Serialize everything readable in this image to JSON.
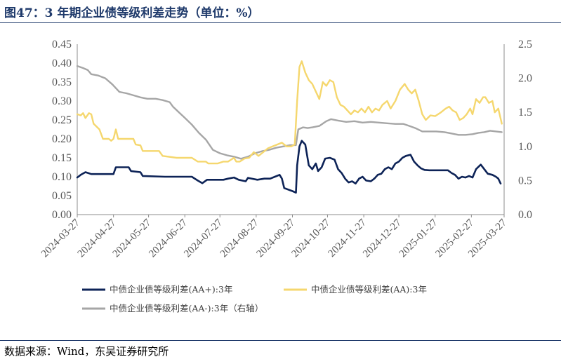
{
  "figure": {
    "title": "图47：3 年期企业债等级利差走势（单位：%）",
    "source": "数据来源：Wind，东吴证券研究所"
  },
  "colors": {
    "title": "#1f3a6b",
    "axis": "#595959",
    "series_aa_plus": "#0d2357",
    "series_aa": "#f5d76e",
    "series_aa_minus": "#a6a6a6"
  },
  "chart_data": {
    "type": "line",
    "title": "",
    "xlabel": "",
    "ylabel": "",
    "x_start": "2024-03-27",
    "x_end": "2025-03-27",
    "x_ticks": [
      "2024-03-27",
      "2024-04-27",
      "2024-05-27",
      "2024-06-27",
      "2024-07-27",
      "2024-08-27",
      "2024-09-27",
      "2024-10-27",
      "2024-11-27",
      "2024-12-27",
      "2025-01-27",
      "2025-02-27",
      "2025-03-27"
    ],
    "ylim": [
      0,
      0.45
    ],
    "y_ticks": [
      "0.00",
      "0.05",
      "0.10",
      "0.15",
      "0.20",
      "0.25",
      "0.30",
      "0.35",
      "0.40",
      "0.45"
    ],
    "y2lim": [
      0,
      2.5
    ],
    "y2_ticks": [
      "0.0",
      "0.5",
      "1.0",
      "1.5",
      "2.0",
      "2.5"
    ],
    "grid": false,
    "legend": "bottom",
    "series": [
      {
        "name": "中债企业债等级利差(AA+):3年",
        "axis": "left",
        "color": "#0d2357",
        "points": [
          [
            "2024-03-27",
            0.098
          ],
          [
            "2024-03-30",
            0.105
          ],
          [
            "2024-04-03",
            0.112
          ],
          [
            "2024-04-08",
            0.107
          ],
          [
            "2024-04-20",
            0.107
          ],
          [
            "2024-04-27",
            0.107
          ],
          [
            "2024-04-29",
            0.125
          ],
          [
            "2024-05-10",
            0.125
          ],
          [
            "2024-05-12",
            0.115
          ],
          [
            "2024-05-20",
            0.112
          ],
          [
            "2024-05-22",
            0.102
          ],
          [
            "2024-06-10",
            0.1
          ],
          [
            "2024-06-27",
            0.1
          ],
          [
            "2024-07-03",
            0.1
          ],
          [
            "2024-07-08",
            0.09
          ],
          [
            "2024-07-12",
            0.083
          ],
          [
            "2024-07-16",
            0.092
          ],
          [
            "2024-07-30",
            0.092
          ],
          [
            "2024-08-03",
            0.095
          ],
          [
            "2024-08-08",
            0.098
          ],
          [
            "2024-08-12",
            0.092
          ],
          [
            "2024-08-18",
            0.088
          ],
          [
            "2024-08-20",
            0.097
          ],
          [
            "2024-08-28",
            0.092
          ],
          [
            "2024-09-03",
            0.095
          ],
          [
            "2024-09-08",
            0.095
          ],
          [
            "2024-09-12",
            0.1
          ],
          [
            "2024-09-16",
            0.105
          ],
          [
            "2024-09-18",
            0.095
          ],
          [
            "2024-09-20",
            0.07
          ],
          [
            "2024-09-27",
            0.062
          ],
          [
            "2024-09-30",
            0.058
          ],
          [
            "2024-10-01",
            0.13
          ],
          [
            "2024-10-03",
            0.18
          ],
          [
            "2024-10-05",
            0.195
          ],
          [
            "2024-10-08",
            0.185
          ],
          [
            "2024-10-11",
            0.13
          ],
          [
            "2024-10-14",
            0.12
          ],
          [
            "2024-10-17",
            0.135
          ],
          [
            "2024-10-19",
            0.115
          ],
          [
            "2024-10-22",
            0.125
          ],
          [
            "2024-10-25",
            0.148
          ],
          [
            "2024-10-29",
            0.15
          ],
          [
            "2024-11-02",
            0.145
          ],
          [
            "2024-11-05",
            0.12
          ],
          [
            "2024-11-08",
            0.11
          ],
          [
            "2024-11-11",
            0.095
          ],
          [
            "2024-11-14",
            0.085
          ],
          [
            "2024-11-17",
            0.088
          ],
          [
            "2024-11-20",
            0.082
          ],
          [
            "2024-11-23",
            0.095
          ],
          [
            "2024-11-26",
            0.1
          ],
          [
            "2024-11-29",
            0.09
          ],
          [
            "2024-12-03",
            0.088
          ],
          [
            "2024-12-06",
            0.095
          ],
          [
            "2024-12-09",
            0.105
          ],
          [
            "2024-12-12",
            0.108
          ],
          [
            "2024-12-15",
            0.12
          ],
          [
            "2024-12-18",
            0.125
          ],
          [
            "2024-12-21",
            0.12
          ],
          [
            "2024-12-24",
            0.135
          ],
          [
            "2024-12-27",
            0.14
          ],
          [
            "2024-12-30",
            0.15
          ],
          [
            "2025-01-02",
            0.155
          ],
          [
            "2025-01-06",
            0.158
          ],
          [
            "2025-01-09",
            0.14
          ],
          [
            "2025-01-12",
            0.13
          ],
          [
            "2025-01-15",
            0.122
          ],
          [
            "2025-01-18",
            0.118
          ],
          [
            "2025-01-22",
            0.117
          ],
          [
            "2025-01-27",
            0.117
          ],
          [
            "2025-02-03",
            0.117
          ],
          [
            "2025-02-07",
            0.117
          ],
          [
            "2025-02-10",
            0.11
          ],
          [
            "2025-02-13",
            0.105
          ],
          [
            "2025-02-16",
            0.095
          ],
          [
            "2025-02-19",
            0.1
          ],
          [
            "2025-02-22",
            0.098
          ],
          [
            "2025-02-25",
            0.102
          ],
          [
            "2025-02-28",
            0.098
          ],
          [
            "2025-03-03",
            0.12
          ],
          [
            "2025-03-07",
            0.132
          ],
          [
            "2025-03-10",
            0.12
          ],
          [
            "2025-03-13",
            0.108
          ],
          [
            "2025-03-17",
            0.105
          ],
          [
            "2025-03-20",
            0.1
          ],
          [
            "2025-03-22",
            0.095
          ],
          [
            "2025-03-24",
            0.082
          ]
        ]
      },
      {
        "name": "中债企业债等级利差(AA):3年",
        "axis": "left",
        "color": "#f5d76e",
        "points": [
          [
            "2024-03-27",
            0.265
          ],
          [
            "2024-03-30",
            0.262
          ],
          [
            "2024-04-01",
            0.268
          ],
          [
            "2024-04-03",
            0.255
          ],
          [
            "2024-04-06",
            0.268
          ],
          [
            "2024-04-08",
            0.265
          ],
          [
            "2024-04-10",
            0.24
          ],
          [
            "2024-04-15",
            0.225
          ],
          [
            "2024-04-18",
            0.2
          ],
          [
            "2024-04-23",
            0.2
          ],
          [
            "2024-04-25",
            0.195
          ],
          [
            "2024-04-27",
            0.2
          ],
          [
            "2024-04-29",
            0.225
          ],
          [
            "2024-05-01",
            0.2
          ],
          [
            "2024-05-05",
            0.2
          ],
          [
            "2024-05-14",
            0.2
          ],
          [
            "2024-05-16",
            0.185
          ],
          [
            "2024-05-20",
            0.183
          ],
          [
            "2024-05-22",
            0.168
          ],
          [
            "2024-06-05",
            0.168
          ],
          [
            "2024-06-08",
            0.155
          ],
          [
            "2024-06-20",
            0.15
          ],
          [
            "2024-06-27",
            0.15
          ],
          [
            "2024-07-03",
            0.15
          ],
          [
            "2024-07-08",
            0.14
          ],
          [
            "2024-07-15",
            0.14
          ],
          [
            "2024-07-17",
            0.135
          ],
          [
            "2024-07-25",
            0.135
          ],
          [
            "2024-07-30",
            0.14
          ],
          [
            "2024-08-03",
            0.14
          ],
          [
            "2024-08-08",
            0.15
          ],
          [
            "2024-08-10",
            0.14
          ],
          [
            "2024-08-13",
            0.14
          ],
          [
            "2024-08-17",
            0.148
          ],
          [
            "2024-08-21",
            0.15
          ],
          [
            "2024-08-25",
            0.165
          ],
          [
            "2024-08-29",
            0.155
          ],
          [
            "2024-09-02",
            0.165
          ],
          [
            "2024-09-06",
            0.175
          ],
          [
            "2024-09-10",
            0.18
          ],
          [
            "2024-09-14",
            0.185
          ],
          [
            "2024-09-18",
            0.19
          ],
          [
            "2024-09-22",
            0.18
          ],
          [
            "2024-09-26",
            0.18
          ],
          [
            "2024-09-29",
            0.185
          ],
          [
            "2024-10-01",
            0.3
          ],
          [
            "2024-10-03",
            0.39
          ],
          [
            "2024-10-05",
            0.405
          ],
          [
            "2024-10-08",
            0.375
          ],
          [
            "2024-10-11",
            0.355
          ],
          [
            "2024-10-14",
            0.345
          ],
          [
            "2024-10-17",
            0.325
          ],
          [
            "2024-10-20",
            0.305
          ],
          [
            "2024-10-23",
            0.35
          ],
          [
            "2024-10-26",
            0.34
          ],
          [
            "2024-10-29",
            0.355
          ],
          [
            "2024-11-01",
            0.35
          ],
          [
            "2024-11-04",
            0.31
          ],
          [
            "2024-11-07",
            0.29
          ],
          [
            "2024-11-10",
            0.285
          ],
          [
            "2024-11-13",
            0.275
          ],
          [
            "2024-11-16",
            0.265
          ],
          [
            "2024-11-19",
            0.275
          ],
          [
            "2024-11-22",
            0.27
          ],
          [
            "2024-11-25",
            0.28
          ],
          [
            "2024-11-28",
            0.27
          ],
          [
            "2024-12-01",
            0.285
          ],
          [
            "2024-12-04",
            0.27
          ],
          [
            "2024-12-07",
            0.28
          ],
          [
            "2024-12-10",
            0.275
          ],
          [
            "2024-12-13",
            0.29
          ],
          [
            "2024-12-17",
            0.3
          ],
          [
            "2024-12-20",
            0.28
          ],
          [
            "2024-12-24",
            0.3
          ],
          [
            "2024-12-28",
            0.33
          ],
          [
            "2025-01-01",
            0.345
          ],
          [
            "2025-01-04",
            0.33
          ],
          [
            "2025-01-07",
            0.32
          ],
          [
            "2025-01-10",
            0.33
          ],
          [
            "2025-01-13",
            0.3
          ],
          [
            "2025-01-16",
            0.265
          ],
          [
            "2025-01-19",
            0.25
          ],
          [
            "2025-01-23",
            0.262
          ],
          [
            "2025-01-27",
            0.26
          ],
          [
            "2025-02-01",
            0.27
          ],
          [
            "2025-02-05",
            0.28
          ],
          [
            "2025-02-08",
            0.285
          ],
          [
            "2025-02-11",
            0.275
          ],
          [
            "2025-02-14",
            0.27
          ],
          [
            "2025-02-17",
            0.25
          ],
          [
            "2025-02-20",
            0.255
          ],
          [
            "2025-02-23",
            0.265
          ],
          [
            "2025-02-26",
            0.28
          ],
          [
            "2025-02-28",
            0.265
          ],
          [
            "2025-03-03",
            0.305
          ],
          [
            "2025-03-06",
            0.295
          ],
          [
            "2025-03-09",
            0.31
          ],
          [
            "2025-03-11",
            0.31
          ],
          [
            "2025-03-14",
            0.295
          ],
          [
            "2025-03-17",
            0.3
          ],
          [
            "2025-03-19",
            0.27
          ],
          [
            "2025-03-22",
            0.28
          ],
          [
            "2025-03-25",
            0.24
          ]
        ]
      },
      {
        "name": "中债企业债等级利差(AA-):3年（右轴）",
        "axis": "right",
        "color": "#a6a6a6",
        "points": [
          [
            "2024-03-27",
            2.18
          ],
          [
            "2024-04-01",
            2.15
          ],
          [
            "2024-04-05",
            2.12
          ],
          [
            "2024-04-08",
            2.06
          ],
          [
            "2024-04-14",
            2.04
          ],
          [
            "2024-04-20",
            2.0
          ],
          [
            "2024-04-26",
            1.91
          ],
          [
            "2024-05-02",
            1.8
          ],
          [
            "2024-05-08",
            1.78
          ],
          [
            "2024-05-14",
            1.75
          ],
          [
            "2024-05-20",
            1.72
          ],
          [
            "2024-05-26",
            1.7
          ],
          [
            "2024-06-02",
            1.7
          ],
          [
            "2024-06-08",
            1.68
          ],
          [
            "2024-06-14",
            1.65
          ],
          [
            "2024-06-17",
            1.58
          ],
          [
            "2024-06-22",
            1.5
          ],
          [
            "2024-06-27",
            1.42
          ],
          [
            "2024-07-03",
            1.32
          ],
          [
            "2024-07-09",
            1.2
          ],
          [
            "2024-07-15",
            1.1
          ],
          [
            "2024-07-21",
            0.95
          ],
          [
            "2024-07-27",
            0.9
          ],
          [
            "2024-08-02",
            0.87
          ],
          [
            "2024-08-08",
            0.85
          ],
          [
            "2024-08-14",
            0.82
          ],
          [
            "2024-08-20",
            0.85
          ],
          [
            "2024-08-26",
            0.9
          ],
          [
            "2024-09-01",
            0.93
          ],
          [
            "2024-09-07",
            0.95
          ],
          [
            "2024-09-13",
            0.98
          ],
          [
            "2024-09-19",
            1.0
          ],
          [
            "2024-09-25",
            1.02
          ],
          [
            "2024-09-30",
            1.02
          ],
          [
            "2024-10-02",
            1.25
          ],
          [
            "2024-10-06",
            1.28
          ],
          [
            "2024-10-10",
            1.27
          ],
          [
            "2024-10-14",
            1.28
          ],
          [
            "2024-10-20",
            1.3
          ],
          [
            "2024-10-26",
            1.37
          ],
          [
            "2024-10-30",
            1.4
          ],
          [
            "2024-11-05",
            1.38
          ],
          [
            "2024-11-12",
            1.36
          ],
          [
            "2024-11-19",
            1.37
          ],
          [
            "2024-11-26",
            1.35
          ],
          [
            "2024-12-03",
            1.36
          ],
          [
            "2024-12-10",
            1.35
          ],
          [
            "2024-12-17",
            1.34
          ],
          [
            "2024-12-24",
            1.33
          ],
          [
            "2024-12-31",
            1.33
          ],
          [
            "2025-01-05",
            1.3
          ],
          [
            "2025-01-10",
            1.27
          ],
          [
            "2025-01-16",
            1.22
          ],
          [
            "2025-01-22",
            1.22
          ],
          [
            "2025-01-28",
            1.22
          ],
          [
            "2025-02-04",
            1.21
          ],
          [
            "2025-02-10",
            1.19
          ],
          [
            "2025-02-16",
            1.17
          ],
          [
            "2025-02-22",
            1.17
          ],
          [
            "2025-02-28",
            1.18
          ],
          [
            "2025-03-05",
            1.2
          ],
          [
            "2025-03-10",
            1.21
          ],
          [
            "2025-03-15",
            1.23
          ],
          [
            "2025-03-20",
            1.22
          ],
          [
            "2025-03-25",
            1.21
          ]
        ]
      }
    ]
  }
}
